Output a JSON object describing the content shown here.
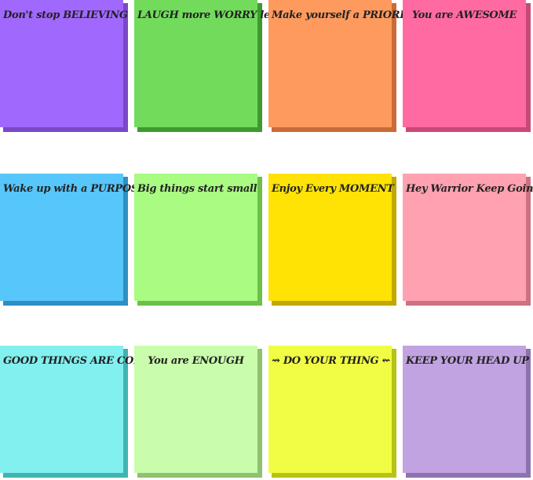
{
  "notes": [
    {
      "text": "Don't stop BELIEVING",
      "color": "#a168fd",
      "edge": "#7a48c8"
    },
    {
      "text": "LAUGH more WORRY less",
      "color": "#72db5c",
      "edge": "#3f9a2e"
    },
    {
      "text": "Make yourself a PRIORITY",
      "color": "#ff9a5e",
      "edge": "#c86c38"
    },
    {
      "text": "You are AWESOME",
      "color": "#ff6aa2",
      "edge": "#c84878"
    },
    {
      "text": "Wake up with a PURPOSE",
      "color": "#56c6fb",
      "edge": "#2f8fc2"
    },
    {
      "text": "Big things start small",
      "color": "#a9fb82",
      "edge": "#6cbf4a"
    },
    {
      "text": "Enjoy Every MOMENT",
      "color": "#ffe304",
      "edge": "#c2a800"
    },
    {
      "text": "Hey Warrior Keep Going",
      "color": "#ffa1b1",
      "edge": "#cc7282"
    },
    {
      "text": "GOOD THINGS ARE COMING",
      "color": "#82f0ee",
      "edge": "#3fb4b2"
    },
    {
      "text": "You are ENOUGH",
      "color": "#c9fdab",
      "edge": "#8cc270"
    },
    {
      "text": "⇝ DO YOUR THING ⇜",
      "color": "#f1fd44",
      "edge": "#b8c212"
    },
    {
      "text": "KEEP YOUR HEAD UP",
      "color": "#c1a3e1",
      "edge": "#8e72b0"
    }
  ]
}
